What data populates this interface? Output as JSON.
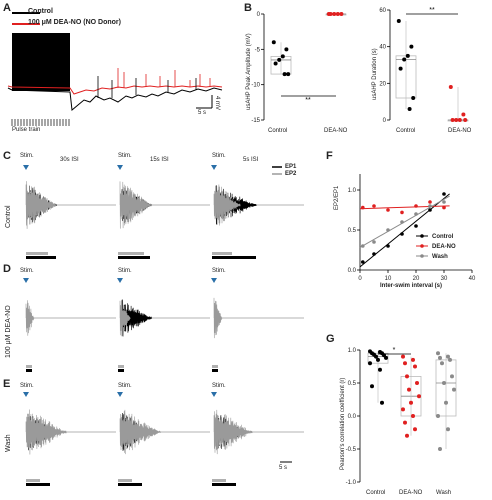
{
  "panels": {
    "A": {
      "label": "A",
      "legend": [
        {
          "name": "Control",
          "color": "#000000"
        },
        {
          "name": "100 μM DEA-NO (NO Donor)",
          "color": "#e02020"
        }
      ],
      "scale_v": "4 mV",
      "scale_t": "5 s",
      "pulse_label": "Pulse train"
    },
    "B": {
      "label": "B",
      "left": {
        "ylabel": "usAHP Peak Amplitude (mV)",
        "yticks": [
          "0",
          "-5",
          "-10",
          "-15"
        ],
        "categories": [
          "Control",
          "DEA-NO"
        ],
        "sig": "**"
      },
      "right": {
        "ylabel": "usAHP Duration (s)",
        "yticks": [
          "0",
          "20",
          "40",
          "60"
        ],
        "categories": [
          "Control",
          "DEA-NO"
        ],
        "sig": "**"
      }
    },
    "C": {
      "label": "C",
      "row_label": "Control",
      "isi": [
        "30s ISI",
        "15s ISI",
        "5s ISI"
      ],
      "stim": "Stim."
    },
    "D": {
      "label": "D",
      "row_label": "100 μM DEA-NO",
      "stim": "Stim."
    },
    "E": {
      "label": "E",
      "row_label": "Wash",
      "stim": "Stim.",
      "scale_t": "5 s"
    },
    "ep_legend": [
      "EP1",
      "EP2"
    ],
    "F": {
      "label": "F",
      "ylabel": "EP2/EP1",
      "xlabel": "Inter-swim interval (s)",
      "xticks": [
        "0",
        "10",
        "20",
        "30",
        "40"
      ],
      "yticks": [
        "0.0",
        "0.5",
        "1.0"
      ],
      "legend": [
        "Control",
        "DEA-NO",
        "Wash"
      ]
    },
    "G": {
      "label": "G",
      "ylabel": "Pearson's correlation coefficient (r)",
      "yticks": [
        "1.0",
        "0.5",
        "0.0",
        "-0.5",
        "-1.0"
      ],
      "categories": [
        "Control",
        "DEA-NO",
        "Wash"
      ],
      "sig": "*"
    }
  },
  "colors": {
    "control": "#000000",
    "deano": "#e02020",
    "wash": "#8a8a8a",
    "ep1": "#000000",
    "ep2": "#9a9a9a"
  },
  "chart_data": [
    {
      "type": "scatter",
      "ylabel": "usAHP Peak Amplitude (mV)",
      "ylim": [
        -15,
        0
      ],
      "categories": [
        "Control",
        "DEA-NO"
      ],
      "series": [
        {
          "name": "Control",
          "values": [
            -4.0,
            -5.0,
            -6.0,
            -6.5,
            -7.0,
            -8.5,
            -8.5
          ]
        },
        {
          "name": "DEA-NO",
          "values": [
            0,
            0,
            0,
            0,
            0
          ]
        }
      ]
    },
    {
      "type": "scatter",
      "ylabel": "usAHP Duration (s)",
      "ylim": [
        0,
        60
      ],
      "categories": [
        "Control",
        "DEA-NO"
      ],
      "series": [
        {
          "name": "Control",
          "values": [
            54,
            40,
            35,
            33,
            28,
            12,
            6
          ]
        },
        {
          "name": "DEA-NO",
          "values": [
            18,
            3,
            0,
            0,
            0,
            0
          ]
        }
      ]
    },
    {
      "type": "scatter",
      "xlabel": "Inter-swim interval (s)",
      "ylabel": "EP2/EP1",
      "xlim": [
        0,
        40
      ],
      "ylim": [
        0,
        1.2
      ],
      "series": [
        {
          "name": "Control",
          "x": [
            1,
            5,
            10,
            15,
            20,
            25,
            30
          ],
          "y": [
            0.1,
            0.2,
            0.3,
            0.45,
            0.55,
            0.75,
            0.95
          ]
        },
        {
          "name": "DEA-NO",
          "x": [
            1,
            5,
            10,
            15,
            20,
            25,
            30
          ],
          "y": [
            0.78,
            0.8,
            0.75,
            0.72,
            0.8,
            0.85,
            0.78
          ]
        },
        {
          "name": "Wash",
          "x": [
            1,
            5,
            10,
            15,
            20,
            25,
            30
          ],
          "y": [
            0.3,
            0.35,
            0.5,
            0.6,
            0.7,
            0.8,
            0.85
          ]
        }
      ]
    },
    {
      "type": "scatter",
      "ylabel": "Pearson's correlation coefficient (r)",
      "ylim": [
        -1,
        1
      ],
      "categories": [
        "Control",
        "DEA-NO",
        "Wash"
      ],
      "series": [
        {
          "name": "Control",
          "values": [
            0.98,
            0.97,
            0.95,
            0.95,
            0.93,
            0.92,
            0.9,
            0.88,
            0.85,
            0.8,
            0.7,
            0.45,
            0.2
          ]
        },
        {
          "name": "DEA-NO",
          "values": [
            0.9,
            0.85,
            0.8,
            0.75,
            0.6,
            0.5,
            0.4,
            0.3,
            0.2,
            0.1,
            0.0,
            -0.1,
            -0.2,
            -0.3
          ]
        },
        {
          "name": "Wash",
          "values": [
            0.95,
            0.9,
            0.88,
            0.85,
            0.8,
            0.6,
            0.5,
            0.4,
            0.2,
            0.0,
            -0.2,
            -0.5
          ]
        }
      ]
    }
  ]
}
